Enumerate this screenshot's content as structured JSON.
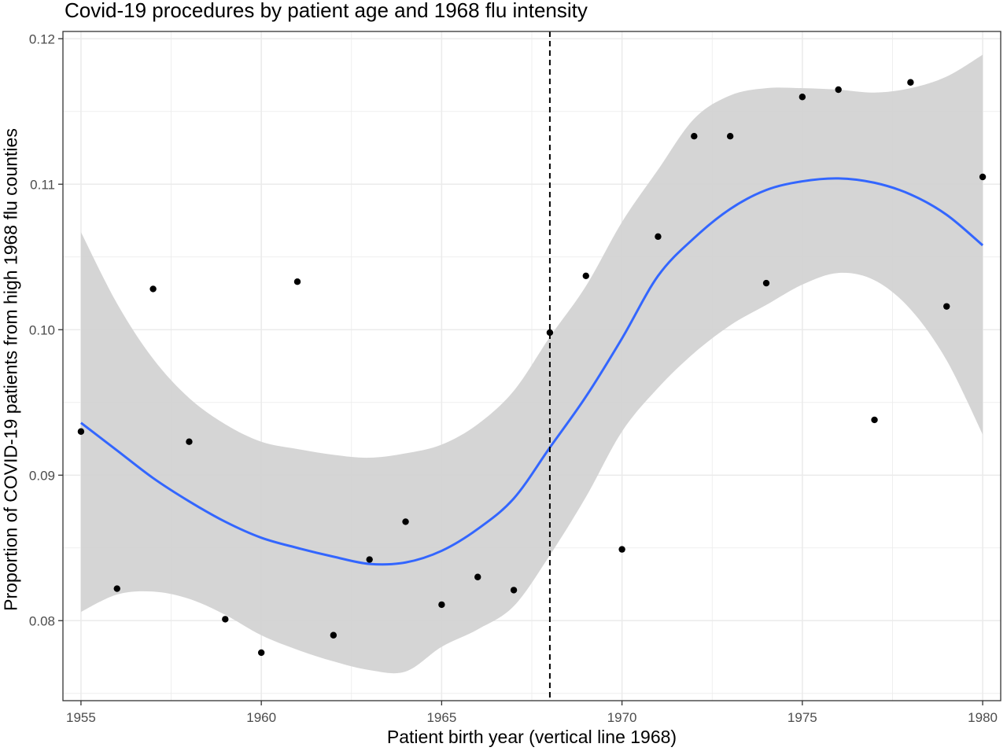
{
  "chart_data": {
    "type": "scatter",
    "title": "Covid-19 procedures by patient age and 1968 flu intensity",
    "xlabel": "Patient birth year (vertical line 1968)",
    "ylabel": "Proportion of COVID-19 patients from high 1968 flu counties",
    "xlim": [
      1954.5,
      1980.5
    ],
    "ylim": [
      0.0745,
      0.1205
    ],
    "x_ticks": [
      1955,
      1960,
      1965,
      1970,
      1975,
      1980
    ],
    "x_tick_labels": [
      "1955",
      "1960",
      "1965",
      "1970",
      "1975",
      "1980"
    ],
    "y_ticks": [
      0.08,
      0.09,
      0.1,
      0.11,
      0.12
    ],
    "y_tick_labels": [
      "0.08",
      "0.09",
      "0.10",
      "0.11",
      "0.12"
    ],
    "grid": true,
    "vline": 1968,
    "points": [
      {
        "x": 1955,
        "y": 0.093
      },
      {
        "x": 1956,
        "y": 0.0822
      },
      {
        "x": 1957,
        "y": 0.1028
      },
      {
        "x": 1958,
        "y": 0.0923
      },
      {
        "x": 1959,
        "y": 0.0801
      },
      {
        "x": 1960,
        "y": 0.0778
      },
      {
        "x": 1961,
        "y": 0.1033
      },
      {
        "x": 1962,
        "y": 0.079
      },
      {
        "x": 1963,
        "y": 0.0842
      },
      {
        "x": 1964,
        "y": 0.0868
      },
      {
        "x": 1965,
        "y": 0.0811
      },
      {
        "x": 1966,
        "y": 0.083
      },
      {
        "x": 1967,
        "y": 0.0821
      },
      {
        "x": 1968,
        "y": 0.0998
      },
      {
        "x": 1969,
        "y": 0.1037
      },
      {
        "x": 1970,
        "y": 0.0849
      },
      {
        "x": 1971,
        "y": 0.1064
      },
      {
        "x": 1972,
        "y": 0.1133
      },
      {
        "x": 1973,
        "y": 0.1133
      },
      {
        "x": 1974,
        "y": 0.1032
      },
      {
        "x": 1975,
        "y": 0.116
      },
      {
        "x": 1976,
        "y": 0.1165
      },
      {
        "x": 1977,
        "y": 0.0938
      },
      {
        "x": 1978,
        "y": 0.117
      },
      {
        "x": 1979,
        "y": 0.1016
      },
      {
        "x": 1980,
        "y": 0.1105
      }
    ],
    "smooth": {
      "x": [
        1955,
        1956,
        1957,
        1958,
        1959,
        1960,
        1961,
        1962,
        1963,
        1964,
        1965,
        1966,
        1967,
        1968,
        1969,
        1970,
        1971,
        1972,
        1973,
        1974,
        1975,
        1976,
        1977,
        1978,
        1979,
        1980
      ],
      "y": [
        0.0936,
        0.0917,
        0.0898,
        0.0882,
        0.0868,
        0.0857,
        0.085,
        0.0844,
        0.0839,
        0.084,
        0.0848,
        0.0863,
        0.0884,
        0.0919,
        0.0954,
        0.0994,
        0.1037,
        0.1063,
        0.1083,
        0.1096,
        0.1102,
        0.1104,
        0.1101,
        0.1093,
        0.1079,
        0.1058
      ],
      "lower": [
        0.0806,
        0.0818,
        0.082,
        0.0815,
        0.0804,
        0.079,
        0.078,
        0.0772,
        0.0766,
        0.0765,
        0.0782,
        0.0794,
        0.081,
        0.0845,
        0.0885,
        0.093,
        0.096,
        0.0984,
        0.1003,
        0.1017,
        0.1031,
        0.1039,
        0.1034,
        0.1014,
        0.0979,
        0.0928
      ],
      "upper": [
        0.1067,
        0.1018,
        0.098,
        0.0953,
        0.0935,
        0.0923,
        0.0918,
        0.0914,
        0.0912,
        0.0915,
        0.0921,
        0.0935,
        0.0958,
        0.0995,
        0.103,
        0.1074,
        0.111,
        0.1145,
        0.1161,
        0.1166,
        0.1166,
        0.1165,
        0.1163,
        0.1166,
        0.1174,
        0.1189
      ]
    },
    "colors": {
      "points": "#000000",
      "smooth_line": "#3366ff",
      "ribbon": "#d3d3d3",
      "grid": "#ebebeb",
      "panel_border": "#333333",
      "vline": "#000000"
    }
  }
}
